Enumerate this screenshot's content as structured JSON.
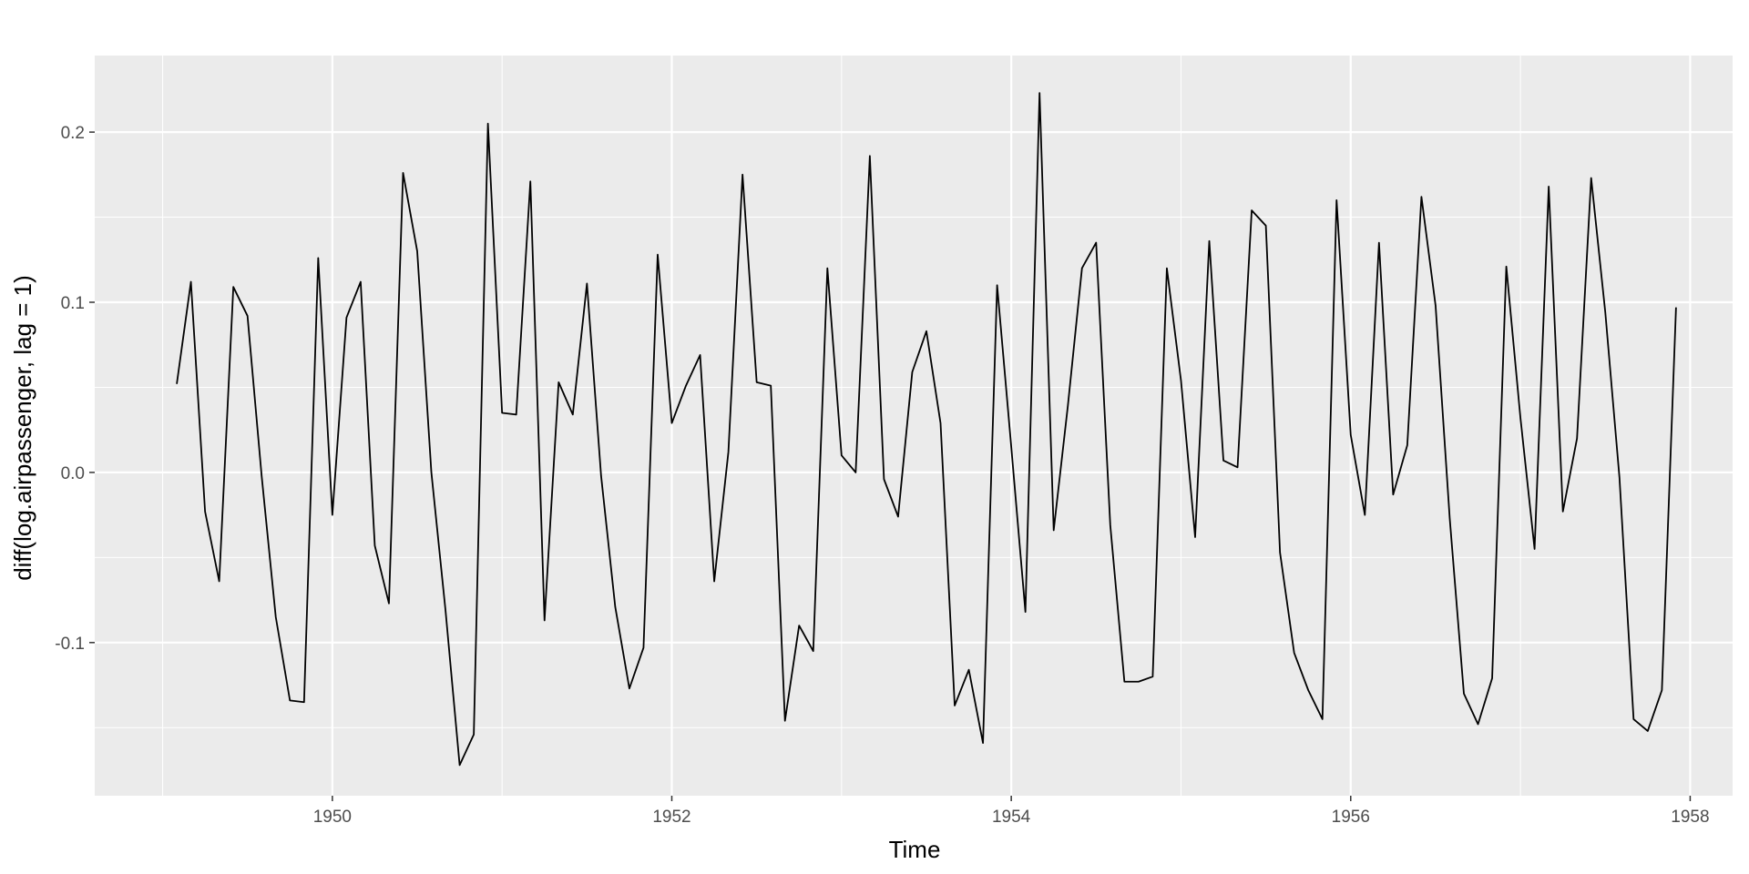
{
  "chart_data": {
    "type": "line",
    "title": "",
    "xlabel": "Time",
    "ylabel": "diff(log.airpassenger, lag = 1)",
    "xlim": [
      1948.6,
      1958.25
    ],
    "ylim": [
      -0.19,
      0.245
    ],
    "x_ticks": [
      1950,
      1952,
      1954,
      1956,
      1958
    ],
    "x_tick_labels": [
      "1950",
      "1952",
      "1954",
      "1956",
      "1958"
    ],
    "y_ticks": [
      -0.1,
      0.0,
      0.1,
      0.2
    ],
    "y_tick_labels": [
      "-0.1",
      "0.0",
      "0.1",
      "0.2"
    ],
    "grid": true,
    "colors": {
      "panel": "#ebebeb",
      "grid": "#ffffff",
      "line": "#000000"
    },
    "series": [
      {
        "x_start": 1949.0833333,
        "x_step": 0.0833333,
        "values": [
          0.052,
          0.112,
          -0.023,
          -0.064,
          0.109,
          0.092,
          -0.002,
          -0.085,
          -0.134,
          -0.135,
          0.126,
          -0.025,
          0.091,
          0.112,
          -0.043,
          -0.077,
          0.176,
          0.13,
          0.0,
          -0.081,
          -0.172,
          -0.154,
          0.205,
          0.035,
          0.034,
          0.171,
          -0.087,
          0.053,
          0.034,
          0.111,
          -0.002,
          -0.079,
          -0.127,
          -0.103,
          0.128,
          0.029,
          0.051,
          0.069,
          -0.064,
          0.012,
          0.175,
          0.053,
          0.051,
          -0.146,
          -0.09,
          -0.105,
          0.12,
          0.01,
          0.0,
          0.186,
          -0.004,
          -0.026,
          0.059,
          0.083,
          0.029,
          -0.137,
          -0.116,
          -0.159,
          0.11,
          0.015,
          -0.082,
          0.223,
          -0.034,
          0.039,
          0.12,
          0.135,
          -0.031,
          -0.123,
          -0.123,
          -0.12,
          0.12,
          0.054,
          -0.038,
          0.136,
          0.007,
          0.003,
          0.154,
          0.145,
          -0.047,
          -0.106,
          -0.128,
          -0.145,
          0.16,
          0.022,
          -0.025,
          0.135,
          -0.013,
          0.016,
          0.162,
          0.098,
          -0.027,
          -0.13,
          -0.148,
          -0.121,
          0.121,
          0.032,
          -0.045,
          0.168,
          -0.023,
          0.02,
          0.173,
          0.094,
          -0.003,
          -0.145,
          -0.152,
          -0.128,
          0.097
        ]
      }
    ]
  }
}
